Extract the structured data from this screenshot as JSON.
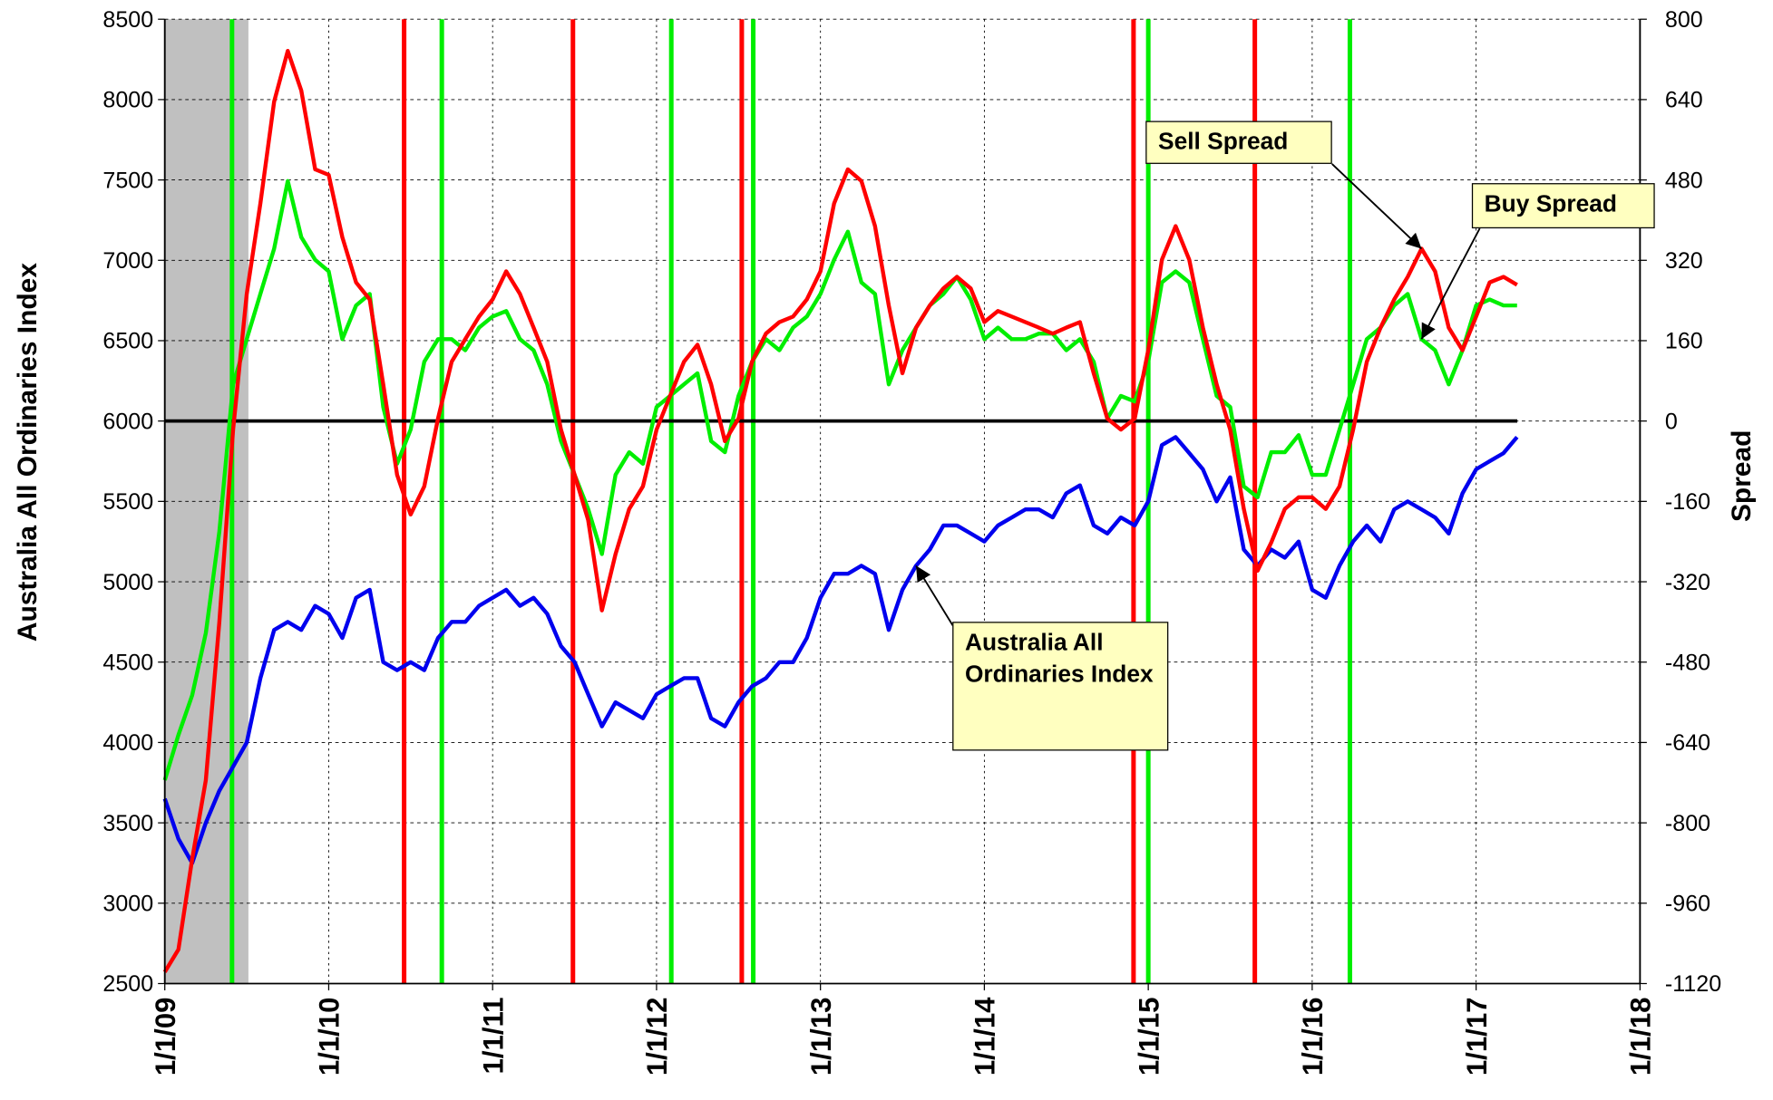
{
  "chart_data": {
    "type": "line",
    "ylabel": "Australia All Ordinaries Index",
    "y2label": "Spread",
    "xlim": [
      2009,
      2018
    ],
    "xticks": [
      {
        "value": 2009,
        "label": "1/1/09"
      },
      {
        "value": 2010,
        "label": "1/1/10"
      },
      {
        "value": 2011,
        "label": "1/1/11"
      },
      {
        "value": 2012,
        "label": "1/1/12"
      },
      {
        "value": 2013,
        "label": "1/1/13"
      },
      {
        "value": 2014,
        "label": "1/1/14"
      },
      {
        "value": 2015,
        "label": "1/1/15"
      },
      {
        "value": 2016,
        "label": "1/1/16"
      },
      {
        "value": 2017,
        "label": "1/1/17"
      },
      {
        "value": 2018,
        "label": "1/1/18"
      }
    ],
    "ylim": [
      2500,
      8500
    ],
    "yticks": [
      2500,
      3000,
      3500,
      4000,
      4500,
      5000,
      5500,
      6000,
      6500,
      7000,
      7500,
      8000,
      8500
    ],
    "y2lim": [
      -1120,
      800
    ],
    "y2ticks": [
      -1120,
      -960,
      -800,
      -640,
      -480,
      -320,
      -160,
      0,
      160,
      320,
      480,
      640,
      800
    ],
    "grid": true,
    "reference_line": {
      "axis": "y2",
      "value": 0,
      "color": "#000000"
    },
    "shaded": {
      "x": [
        2009,
        2009.51
      ],
      "color": "#c0c0c0"
    },
    "signals": [
      {
        "color": "#00ee00",
        "x": [
          2009.41,
          2010.69,
          2012.09,
          2012.59,
          2015.0,
          2016.23
        ]
      },
      {
        "color": "#ff0000",
        "x": [
          2010.46,
          2011.49,
          2012.52,
          2014.91,
          2015.65
        ]
      }
    ],
    "x": [
      2009.0,
      2009.083,
      2009.167,
      2009.25,
      2009.333,
      2009.417,
      2009.5,
      2009.583,
      2009.667,
      2009.75,
      2009.833,
      2009.917,
      2010.0,
      2010.083,
      2010.167,
      2010.25,
      2010.333,
      2010.417,
      2010.5,
      2010.583,
      2010.667,
      2010.75,
      2010.833,
      2010.917,
      2011.0,
      2011.083,
      2011.167,
      2011.25,
      2011.333,
      2011.417,
      2011.5,
      2011.583,
      2011.667,
      2011.75,
      2011.833,
      2011.917,
      2012.0,
      2012.083,
      2012.167,
      2012.25,
      2012.333,
      2012.417,
      2012.5,
      2012.583,
      2012.667,
      2012.75,
      2012.833,
      2012.917,
      2013.0,
      2013.083,
      2013.167,
      2013.25,
      2013.333,
      2013.417,
      2013.5,
      2013.583,
      2013.667,
      2013.75,
      2013.833,
      2013.917,
      2014.0,
      2014.083,
      2014.167,
      2014.25,
      2014.333,
      2014.417,
      2014.5,
      2014.583,
      2014.667,
      2014.75,
      2014.833,
      2014.917,
      2015.0,
      2015.083,
      2015.167,
      2015.25,
      2015.333,
      2015.417,
      2015.5,
      2015.583,
      2015.667,
      2015.75,
      2015.833,
      2015.917,
      2016.0,
      2016.083,
      2016.167,
      2016.25,
      2016.333,
      2016.417,
      2016.5,
      2016.583,
      2016.667,
      2016.75,
      2016.833,
      2016.917,
      2017.0,
      2017.083,
      2017.167,
      2017.25
    ],
    "series": [
      {
        "name": "Australia All Ordinaries Index",
        "color": "#0000ee",
        "values": [
          3650,
          3400,
          3250,
          3500,
          3700,
          3850,
          4000,
          4400,
          4700,
          4750,
          4700,
          4850,
          4800,
          4650,
          4900,
          4950,
          4500,
          4450,
          4500,
          4450,
          4650,
          4750,
          4750,
          4850,
          4900,
          4950,
          4850,
          4900,
          4800,
          4600,
          4500,
          4300,
          4100,
          4250,
          4200,
          4150,
          4300,
          4350,
          4400,
          4400,
          4150,
          4100,
          4250,
          4350,
          4400,
          4500,
          4500,
          4650,
          4900,
          5050,
          5050,
          5100,
          5050,
          4700,
          4950,
          5100,
          5200,
          5350,
          5350,
          5300,
          5250,
          5350,
          5400,
          5450,
          5450,
          5400,
          5550,
          5600,
          5350,
          5300,
          5400,
          5350,
          5500,
          5850,
          5900,
          5800,
          5700,
          5500,
          5650,
          5200,
          5100,
          5200,
          5150,
          5250,
          4950,
          4900,
          5100,
          5250,
          5350,
          5250,
          5450,
          5500,
          5450,
          5400,
          5300,
          5550,
          5700,
          5750,
          5800,
          5900
        ]
      },
      {
        "name": "Buy Spread",
        "color": "#00ee00",
        "axis": "y2",
        "values": [
          -715,
          -625,
          -546,
          -422,
          -220,
          73,
          163,
          253,
          343,
          478,
          366,
          321,
          298,
          163,
          230,
          253,
          28,
          -85,
          -17,
          118,
          163,
          163,
          141,
          186,
          208,
          219,
          163,
          141,
          73,
          -40,
          -107,
          -175,
          -265,
          -107,
          -62,
          -85,
          28,
          50,
          73,
          95,
          -40,
          -62,
          50,
          118,
          163,
          141,
          186,
          208,
          253,
          321,
          377,
          276,
          253,
          73,
          141,
          186,
          230,
          253,
          287,
          242,
          163,
          186,
          163,
          163,
          174,
          174,
          141,
          163,
          118,
          5,
          50,
          39,
          118,
          276,
          298,
          276,
          163,
          50,
          28,
          -130,
          -152,
          -62,
          -62,
          -28,
          -107,
          -107,
          -17,
          73,
          163,
          186,
          230,
          253,
          163,
          141,
          73,
          141,
          230,
          242,
          230,
          230
        ]
      },
      {
        "name": "Sell Spread",
        "color": "#ff0000",
        "axis": "y2",
        "values": [
          -1097,
          -1052,
          -872,
          -715,
          -400,
          -17,
          253,
          433,
          636,
          737,
          658,
          501,
          490,
          366,
          276,
          242,
          73,
          -107,
          -186,
          -130,
          5,
          118,
          163,
          208,
          242,
          298,
          253,
          186,
          118,
          -17,
          -107,
          -197,
          -377,
          -265,
          -175,
          -130,
          -17,
          50,
          118,
          152,
          73,
          -40,
          5,
          118,
          174,
          197,
          208,
          242,
          298,
          433,
          501,
          478,
          388,
          230,
          95,
          186,
          230,
          264,
          287,
          264,
          197,
          219,
          208,
          197,
          186,
          174,
          186,
          197,
          95,
          5,
          -17,
          5,
          141,
          321,
          388,
          321,
          186,
          73,
          -17,
          -175,
          -298,
          -242,
          -175,
          -152,
          -152,
          -175,
          -130,
          -17,
          118,
          186,
          242,
          287,
          343,
          298,
          186,
          141,
          208,
          276,
          287,
          271
        ]
      }
    ]
  }
}
